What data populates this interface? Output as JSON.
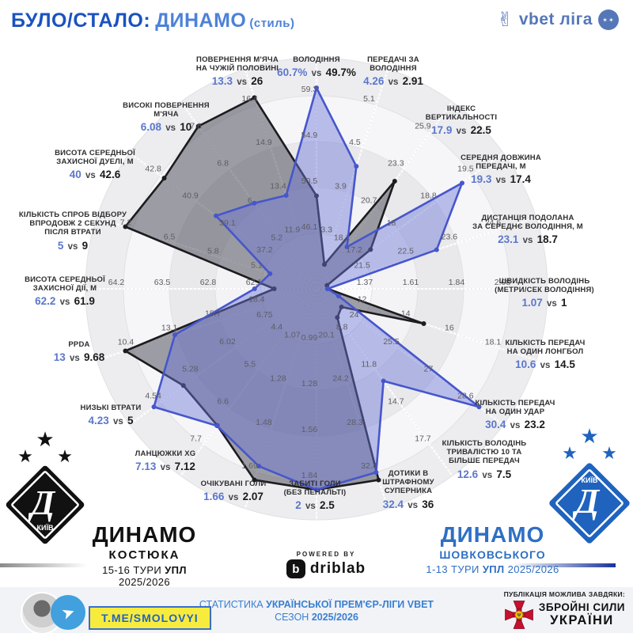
{
  "title": {
    "part1": "БУЛО/СТАЛО:",
    "part2": "ДИНАМО",
    "part3": "(стиль)"
  },
  "league_logo": {
    "text": "vbet ліга",
    "hand_icon": "peace-hand",
    "ball_icon": "soccer-ball",
    "color": "#5577b8"
  },
  "chart_data": {
    "type": "radar",
    "axes_count": 20,
    "legend_position": "none",
    "grid": "circular-rings",
    "series": [
      {
        "name": "ДИНАМО ШОВКОВСЬКОГО (1-13 ТУРИ)",
        "color": "#4656cc",
        "fill": "rgba(108,118,215,0.45)"
      },
      {
        "name": "ДИНАМО КОСТЮКА (15-16 ТУРИ)",
        "color": "#1c1c20",
        "fill": "rgba(72,74,86,0.52)"
      }
    ],
    "axes": [
      {
        "lines": [
          "ВОЛОДІННЯ"
        ],
        "blue_display": "60.7%",
        "black_display": "49.7%",
        "blue": 60.7,
        "black": 49.7,
        "ticks": [
          59.3,
          54.9,
          50.5,
          46.1
        ],
        "inverted": false
      },
      {
        "lines": [
          "ПЕРЕДАЧІ ЗА",
          "ВОЛОДІННЯ"
        ],
        "blue_display": "4.26",
        "black_display": "2.91",
        "blue": 4.26,
        "black": 2.91,
        "ticks": [
          5.1,
          4.5,
          3.9,
          3.3
        ],
        "inverted": false
      },
      {
        "lines": [
          "ІНДЕКС",
          "ВЕРТИКАЛЬНОСТІ"
        ],
        "blue_display": "17.9",
        "black_display": "22.5",
        "blue": 17.9,
        "black": 22.5,
        "ticks": [
          25.9,
          23.3,
          20.7,
          18.1
        ],
        "inverted": false
      },
      {
        "lines": [
          "СЕРЕДНЯ ДОВЖИНА",
          "ПЕРЕДАЧІ, М"
        ],
        "blue_display": "19.3",
        "black_display": "17.4",
        "blue": 19.3,
        "black": 17.4,
        "ticks": [
          19.5,
          18.8,
          18,
          17.2
        ],
        "inverted": false
      },
      {
        "lines": [
          "ДИСТАНЦІЯ ПОДОЛАНА",
          "ЗА СЕРЕДНЄ ВОЛОДІННЯ, М"
        ],
        "blue_display": "23.1",
        "black_display": "18.7",
        "blue": 23.1,
        "black": 18.7,
        "ticks": [
          24.6,
          23.6,
          22.5,
          21.5
        ],
        "inverted": false
      },
      {
        "lines": [
          "ШВИДКІСТЬ ВОЛОДІНЬ",
          "(МЕТРИ/СЕК ВОЛОДІННЯ)"
        ],
        "blue_display": "1.07",
        "black_display": "1",
        "blue": 1.07,
        "black": 1,
        "ticks": [
          2.08,
          1.84,
          1.61,
          1.37
        ],
        "inverted": false
      },
      {
        "lines": [
          "КІЛЬКІСТЬ ПЕРЕДАЧ",
          "НА ОДИН ЛОНГБОЛ"
        ],
        "blue_display": "10.6",
        "black_display": "14.5",
        "blue": 10.6,
        "black": 14.5,
        "ticks": [
          18.1,
          16,
          14,
          12
        ],
        "inverted": false
      },
      {
        "lines": [
          "КІЛЬКІСТЬ ПЕРЕДАЧ",
          "НА ОДИН УДАР"
        ],
        "blue_display": "30.4",
        "black_display": "23.2",
        "blue": 30.4,
        "black": 23.2,
        "ticks": [
          28.6,
          27,
          25.5,
          24
        ],
        "inverted": false
      },
      {
        "lines": [
          "КІЛЬКІСТЬ ВОЛОДІНЬ",
          "ТРИВАЛІСТЮ 10 ТА",
          "БІЛЬШЕ ПЕРЕДАЧ"
        ],
        "blue_display": "12.6",
        "black_display": "7.5",
        "blue": 12.6,
        "black": 7.5,
        "ticks": [
          17.7,
          14.7,
          11.8,
          8.8
        ],
        "inverted": false
      },
      {
        "lines": [
          "ДОТИКИ В",
          "ШТРАФНОМУ",
          "СУПЕРНИКА"
        ],
        "blue_display": "32.4",
        "black_display": "36",
        "blue": 32.4,
        "black": 36,
        "ticks": [
          32.4,
          28.3,
          24.2,
          20.1
        ],
        "inverted": false
      },
      {
        "lines": [
          "ЗАБИТІ ГОЛИ",
          "(БЕЗ ПЕНАЛЬТІ)"
        ],
        "blue_display": "2",
        "black_display": "2.5",
        "blue": 2,
        "black": 2.5,
        "ticks": [
          1.84,
          1.56,
          1.28,
          0.99
        ],
        "inverted": false
      },
      {
        "lines": [
          "ОЧІКУВАНІ ГОЛИ"
        ],
        "blue_display": "1.66",
        "black_display": "2.07",
        "blue": 1.66,
        "black": 2.07,
        "ticks": [
          1.69,
          1.48,
          1.28,
          1.07
        ],
        "inverted": false
      },
      {
        "lines": [
          "ЛАНЦЮЖКИ XG"
        ],
        "blue_display": "7.13",
        "black_display": "7.12",
        "blue": 7.13,
        "black": 7.12,
        "ticks": [
          7.7,
          6.6,
          5.5,
          4.4
        ],
        "inverted": false
      },
      {
        "lines": [
          "НИЗЬКІ ВТРАТИ"
        ],
        "blue_display": "4.23",
        "black_display": "5",
        "blue": 4.23,
        "black": 5,
        "ticks": [
          4.54,
          5.28,
          6.02,
          6.75
        ],
        "inverted": true
      },
      {
        "lines": [
          "PPDA"
        ],
        "blue_display": "13",
        "black_display": "9.68",
        "blue": 13,
        "black": 9.68,
        "ticks": [
          10.4,
          13.1,
          15.7,
          18.4
        ],
        "inverted": true
      },
      {
        "lines": [
          "ВИСОТА СЕРЕДНЬОЇ",
          "ЗАХИСНОЇ ДІЇ, М"
        ],
        "blue_display": "62.2",
        "black_display": "61.9",
        "blue": 62.2,
        "black": 61.9,
        "ticks": [
          64.2,
          63.5,
          62.8,
          62.1
        ],
        "inverted": false
      },
      {
        "lines": [
          "КІЛЬКІСТЬ СПРОБ ВІДБОРУ",
          "ВПРОДОВЖ 2 СЕКУНД",
          "ПІСЛЯ ВТРАТИ"
        ],
        "blue_display": "5",
        "black_display": "9",
        "blue": 5,
        "black": 9,
        "ticks": [
          7.2,
          6.5,
          5.8,
          5.1
        ],
        "inverted": false
      },
      {
        "lines": [
          "ВИСОТА СЕРЕДНЬОЇ",
          "ЗАХИСНОЇ ДУЕЛІ, М"
        ],
        "blue_display": "40",
        "black_display": "42.6",
        "blue": 40,
        "black": 42.6,
        "ticks": [
          42.8,
          40.9,
          39.1,
          37.2
        ],
        "inverted": false
      },
      {
        "lines": [
          "ВИСОКІ ПОВЕРНЕННЯ",
          "М'ЯЧА"
        ],
        "blue_display": "6.08",
        "black_display": "10",
        "blue": 6.08,
        "black": 10,
        "ticks": [
          7.6,
          6.8,
          6,
          5.2
        ],
        "inverted": false
      },
      {
        "lines": [
          "ПОВЕРНЕННЯ М'ЯЧА",
          "НА ЧУЖІЙ ПОЛОВИНІ"
        ],
        "blue_display": "13.3",
        "black_display": "26",
        "blue": 13.3,
        "black": 26,
        "ticks": [
          16.4,
          14.9,
          13.4,
          11.9
        ],
        "inverted": false
      }
    ]
  },
  "teams": {
    "left": {
      "name": "ДИНАМО",
      "coach": "КОСТЮКА",
      "period": "15-16 ТУРИ",
      "league": "УПЛ",
      "season": "2025/2026",
      "badge_city": "КИЇВ",
      "badge_letter": "Д",
      "color": "#111111"
    },
    "right": {
      "name": "ДИНАМО",
      "coach": "ШОВКОВСЬКОГО",
      "period": "1-13 ТУРИ",
      "league": "УПЛ",
      "season": "2025/2026",
      "badge_city": "КИЇВ",
      "badge_letter": "Д",
      "color": "#2e6fc4"
    }
  },
  "powered_by": {
    "caption": "POWERED BY",
    "brand": "driblab",
    "glyph": "b"
  },
  "footer": {
    "telegram": {
      "handle": "T.ME/SMOLOVYI",
      "icon": "telegram-plane"
    },
    "center": {
      "line1_normal": "СТАТИСТИКА",
      "line1_bold": "УКРАЇНСЬКОЇ ПРЕМ'ЄР-ЛІГИ VBET",
      "line2_normal": "СЕЗОН",
      "line2_bold": "2025/2026"
    },
    "credit": {
      "caption": "ПУБЛІКАЦІЯ МОЖЛИВА ЗАВДЯКИ:",
      "org_line1": "ЗБРОЙНІ СИЛИ",
      "org_line2": "УКРАЇНИ",
      "emblem": "afu-cross",
      "emblem_color": "#c8102e"
    }
  }
}
